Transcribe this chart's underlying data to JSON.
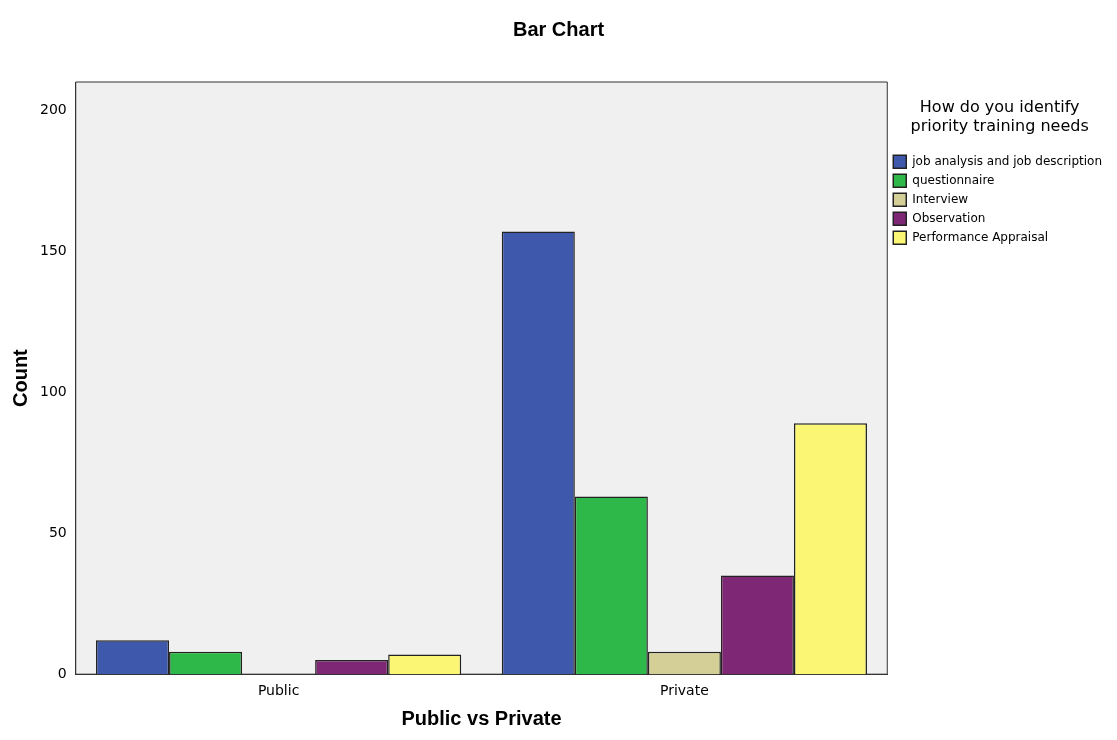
{
  "chart_data": {
    "type": "bar",
    "title": "Bar Chart",
    "xlabel": "Public vs Private",
    "ylabel": "Count",
    "legend_title": "How do you identify priority training needs",
    "categories": [
      "Public",
      "Private"
    ],
    "series": [
      {
        "name": "job analysis and job description",
        "color": "#3e58ac",
        "values": [
          12,
          157
        ]
      },
      {
        "name": "questionnaire",
        "color": "#2fb84a",
        "values": [
          8,
          63
        ]
      },
      {
        "name": "Interview",
        "color": "#d4cf96",
        "values": [
          null,
          8
        ]
      },
      {
        "name": "Observation",
        "color": "#7e2775",
        "values": [
          5,
          35
        ]
      },
      {
        "name": "Performance Appraisal",
        "color": "#fbf774",
        "values": [
          7,
          89
        ]
      }
    ],
    "ylim": [
      0,
      210
    ],
    "yticks": [
      0,
      50,
      100,
      150,
      200
    ],
    "grid": false,
    "legend": "top right"
  }
}
